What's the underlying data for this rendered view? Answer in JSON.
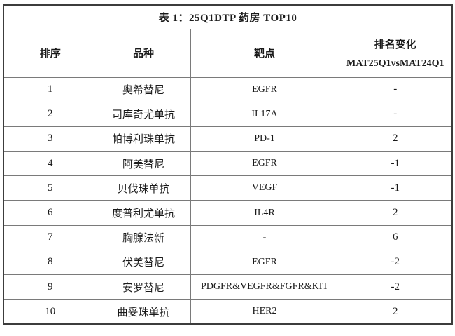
{
  "table": {
    "title": "表 1：25Q1DTP 药房 TOP10",
    "headers": {
      "rank": "排序",
      "product": "品种",
      "target": "靶点",
      "change": "排名变化",
      "change_period": "MAT25Q1vsMAT24Q1"
    },
    "rows": [
      {
        "rank": "1",
        "product": "奥希替尼",
        "target": "EGFR",
        "change": "-"
      },
      {
        "rank": "2",
        "product": "司库奇尤单抗",
        "target": "IL17A",
        "change": "-"
      },
      {
        "rank": "3",
        "product": "帕博利珠单抗",
        "target": "PD-1",
        "change": "2"
      },
      {
        "rank": "4",
        "product": "阿美替尼",
        "target": "EGFR",
        "change": "-1"
      },
      {
        "rank": "5",
        "product": "贝伐珠单抗",
        "target": "VEGF",
        "change": "-1"
      },
      {
        "rank": "6",
        "product": "度普利尤单抗",
        "target": "IL4R",
        "change": "2"
      },
      {
        "rank": "7",
        "product": "胸腺法新",
        "target": "-",
        "change": "6"
      },
      {
        "rank": "8",
        "product": "伏美替尼",
        "target": "EGFR",
        "change": "-2"
      },
      {
        "rank": "9",
        "product": "安罗替尼",
        "target": "PDGFR&VEGFR&FGFR&KIT",
        "change": "-2"
      },
      {
        "rank": "10",
        "product": "曲妥珠单抗",
        "target": "HER2",
        "change": "2"
      }
    ],
    "colors": {
      "background": "#ffffff",
      "text": "#1a1a1a",
      "border_outer": "#3c3c3c",
      "border_inner": "#7a7a7a"
    }
  }
}
